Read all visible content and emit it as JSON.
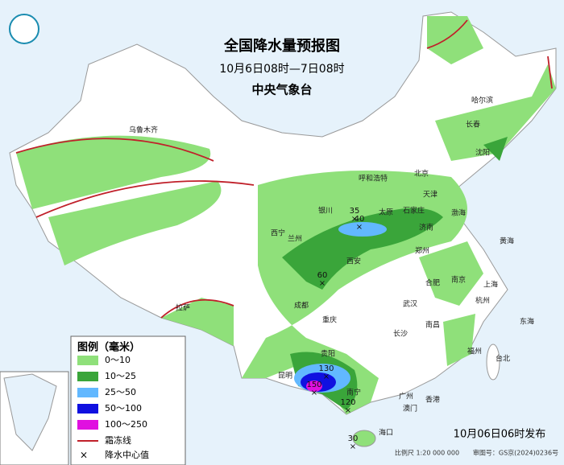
{
  "title": "全国降水量预报图",
  "period": "10月6日08时—7日08时",
  "issuer": "中央气象台",
  "legend": {
    "title": "图例（毫米）",
    "items": [
      {
        "label": "0～10",
        "color": "#8fe07a"
      },
      {
        "label": "10～25",
        "color": "#3aa53a"
      },
      {
        "label": "25～50",
        "color": "#62b8ff"
      },
      {
        "label": "50～100",
        "color": "#1010e0"
      },
      {
        "label": "100～250",
        "color": "#e010e0"
      }
    ],
    "frost_line": "霜冻线",
    "center": "降水中心值"
  },
  "cities": [
    "乌鲁木齐",
    "哈尔滨",
    "长春",
    "沈阳",
    "呼和浩特",
    "北京",
    "天津",
    "银川",
    "太原",
    "石家庄",
    "西宁",
    "兰州",
    "济南",
    "郑州",
    "西安",
    "合肥",
    "南京",
    "上海",
    "杭州",
    "成都",
    "武汉",
    "拉萨",
    "重庆",
    "长沙",
    "南昌",
    "福州",
    "台北",
    "贵阳",
    "昆明",
    "南宁",
    "广州",
    "香港",
    "澳门",
    "海口"
  ],
  "seas": [
    "渤海",
    "黄海",
    "东海"
  ],
  "rain_centers": [
    35,
    40,
    60,
    130,
    150,
    120,
    30
  ],
  "footer": {
    "issued": "10月06日06时发布",
    "scale": "比例尺 1:20 000 000",
    "review": "审图号：GS京(2024)0236号"
  }
}
